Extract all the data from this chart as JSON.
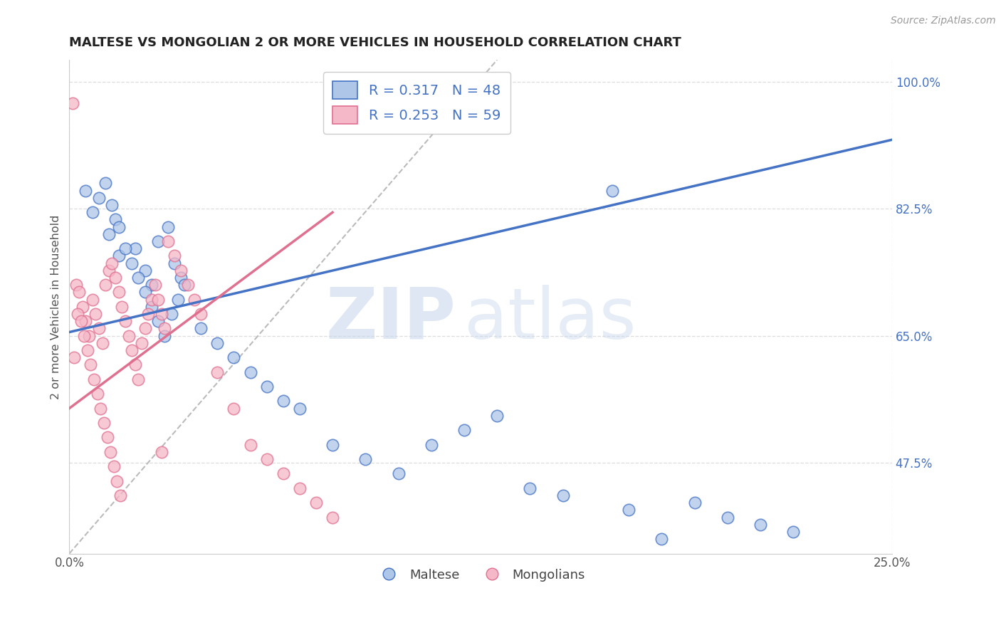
{
  "title": "MALTESE VS MONGOLIAN 2 OR MORE VEHICLES IN HOUSEHOLD CORRELATION CHART",
  "source_text": "Source: ZipAtlas.com",
  "ylabel": "2 or more Vehicles in Household",
  "xlim": [
    0.0,
    25.0
  ],
  "ylim": [
    35.0,
    103.0
  ],
  "xtick_positions": [
    0.0,
    25.0
  ],
  "xticklabels": [
    "0.0%",
    "25.0%"
  ],
  "ytick_positions": [
    47.5,
    65.0,
    82.5,
    100.0
  ],
  "yticklabels": [
    "47.5%",
    "65.0%",
    "82.5%",
    "100.0%"
  ],
  "legend_r_blue": "0.317",
  "legend_n_blue": "48",
  "legend_r_pink": "0.253",
  "legend_n_pink": "59",
  "blue_fill": "#aec6e8",
  "pink_fill": "#f5b8c8",
  "blue_edge": "#4472C4",
  "pink_edge": "#E07090",
  "blue_line_color": "#4472C4",
  "pink_line_color": "#E07090",
  "ref_line_color": "#bbbbbb",
  "watermark_zip": "ZIP",
  "watermark_atlas": "atlas",
  "watermark_color": "#d5e5f5",
  "grid_color": "#dddddd",
  "maltese_x": [
    1.5,
    2.0,
    2.3,
    2.5,
    2.7,
    3.0,
    3.2,
    3.4,
    1.2,
    1.4,
    0.5,
    0.7,
    0.9,
    1.1,
    1.3,
    1.5,
    1.7,
    1.9,
    2.1,
    2.3,
    2.5,
    2.7,
    2.9,
    3.1,
    3.3,
    3.5,
    4.0,
    4.5,
    5.0,
    5.5,
    6.0,
    6.5,
    7.0,
    8.0,
    9.0,
    10.0,
    11.0,
    12.0,
    13.0,
    14.0,
    15.0,
    17.0,
    19.0,
    20.0,
    21.0,
    22.0,
    16.5,
    18.0
  ],
  "maltese_y": [
    76.0,
    77.0,
    74.0,
    72.0,
    78.0,
    80.0,
    75.0,
    73.0,
    79.0,
    81.0,
    85.0,
    82.0,
    84.0,
    86.0,
    83.0,
    80.0,
    77.0,
    75.0,
    73.0,
    71.0,
    69.0,
    67.0,
    65.0,
    68.0,
    70.0,
    72.0,
    66.0,
    64.0,
    62.0,
    60.0,
    58.0,
    56.0,
    55.0,
    50.0,
    48.0,
    46.0,
    50.0,
    52.0,
    54.0,
    44.0,
    43.0,
    41.0,
    42.0,
    40.0,
    39.0,
    38.0,
    85.0,
    37.0
  ],
  "mongolian_x": [
    0.1,
    0.2,
    0.3,
    0.4,
    0.5,
    0.6,
    0.7,
    0.8,
    0.9,
    1.0,
    1.1,
    1.2,
    1.3,
    1.4,
    1.5,
    1.6,
    1.7,
    1.8,
    1.9,
    2.0,
    2.1,
    2.2,
    2.3,
    2.4,
    2.5,
    2.6,
    2.7,
    2.8,
    2.9,
    3.0,
    3.2,
    3.4,
    3.6,
    3.8,
    4.0,
    4.5,
    5.0,
    5.5,
    6.0,
    6.5,
    7.0,
    7.5,
    8.0,
    0.15,
    0.25,
    0.35,
    0.45,
    0.55,
    0.65,
    0.75,
    0.85,
    0.95,
    1.05,
    1.15,
    1.25,
    1.35,
    1.45,
    1.55,
    2.8
  ],
  "mongolian_y": [
    97.0,
    72.0,
    71.0,
    69.0,
    67.0,
    65.0,
    70.0,
    68.0,
    66.0,
    64.0,
    72.0,
    74.0,
    75.0,
    73.0,
    71.0,
    69.0,
    67.0,
    65.0,
    63.0,
    61.0,
    59.0,
    64.0,
    66.0,
    68.0,
    70.0,
    72.0,
    70.0,
    68.0,
    66.0,
    78.0,
    76.0,
    74.0,
    72.0,
    70.0,
    68.0,
    60.0,
    55.0,
    50.0,
    48.0,
    46.0,
    44.0,
    42.0,
    40.0,
    62.0,
    68.0,
    67.0,
    65.0,
    63.0,
    61.0,
    59.0,
    57.0,
    55.0,
    53.0,
    51.0,
    49.0,
    47.0,
    45.0,
    43.0,
    49.0
  ],
  "blue_trend_y0": 65.5,
  "blue_trend_y1": 92.0,
  "pink_trend_y0": 55.0,
  "pink_trend_y1": 82.0,
  "ref_line_x0": 0.0,
  "ref_line_y0": 35.0,
  "ref_line_x1": 13.0,
  "ref_line_y1": 103.0
}
